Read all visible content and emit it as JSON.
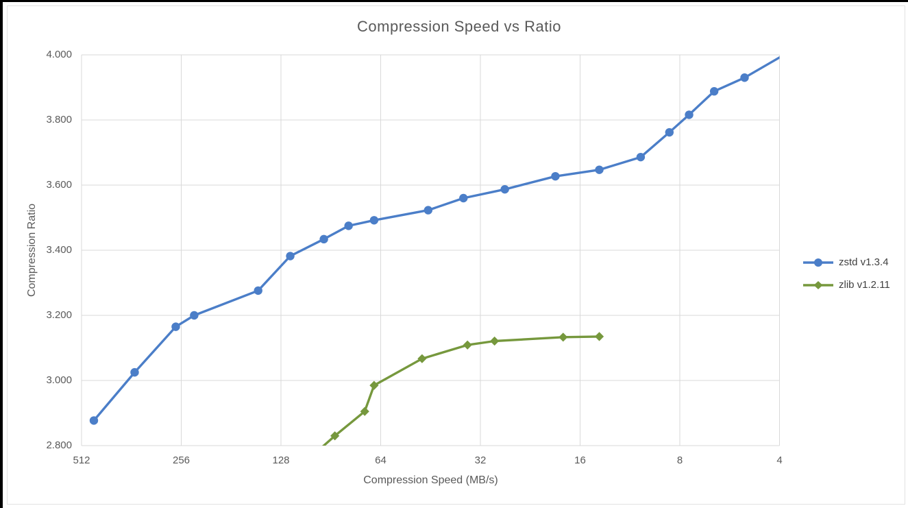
{
  "window": {
    "background": "#000000",
    "panel_background": "#ffffff"
  },
  "colors": {
    "grid": "#D9D9D9",
    "axis_text": "#595959",
    "title_text": "#595959",
    "legend_text": "#404040",
    "zstd_blue": "#4B7EC8",
    "zlib_green": "#76983D"
  },
  "chart_data": {
    "type": "line",
    "title": "Compression Speed vs Ratio",
    "xlabel": "Compression Speed (MB/s)",
    "ylabel": "Compression Ratio",
    "x_scale": "log2-reversed",
    "x_ticks": [
      512,
      256,
      128,
      64,
      32,
      16,
      8,
      4
    ],
    "x_tick_labels": [
      "512",
      "256",
      "128",
      "64",
      "32",
      "16",
      "8",
      "4"
    ],
    "y_ticks": [
      2.8,
      3.0,
      3.2,
      3.4,
      3.6,
      3.8,
      4.0
    ],
    "y_tick_labels": [
      "2.800",
      "3.000",
      "3.200",
      "3.400",
      "3.600",
      "3.800",
      "4.000"
    ],
    "ylim": [
      2.8,
      4.0
    ],
    "grid": true,
    "legend_position": "right",
    "series": [
      {
        "name": "zstd v1.3.4",
        "color": "#4B7EC8",
        "marker": "circle",
        "points": [
          [
            470,
            2.877
          ],
          [
            354,
            3.025
          ],
          [
            266,
            3.165
          ],
          [
            234,
            3.2
          ],
          [
            150,
            3.276
          ],
          [
            120,
            3.382
          ],
          [
            95,
            3.434
          ],
          [
            80,
            3.475
          ],
          [
            67,
            3.492
          ],
          [
            46,
            3.523
          ],
          [
            36,
            3.56
          ],
          [
            27,
            3.587
          ],
          [
            19,
            3.627
          ],
          [
            14,
            3.647
          ],
          [
            10.5,
            3.686
          ],
          [
            8.6,
            3.762
          ],
          [
            7.5,
            3.816
          ],
          [
            6.3,
            3.888
          ],
          [
            5.1,
            3.93
          ],
          [
            4.0,
            3.992
          ]
        ],
        "skip_marker_indices": [
          19
        ]
      },
      {
        "name": "zlib v1.2.11",
        "color": "#76983D",
        "marker": "diamond",
        "points": [
          [
            110,
            2.743
          ],
          [
            88,
            2.83
          ],
          [
            71.5,
            2.905
          ],
          [
            67,
            2.985
          ],
          [
            48,
            3.067
          ],
          [
            35,
            3.109
          ],
          [
            29,
            3.121
          ],
          [
            18,
            3.133
          ],
          [
            14,
            3.135
          ]
        ],
        "skip_marker_indices": []
      }
    ]
  }
}
